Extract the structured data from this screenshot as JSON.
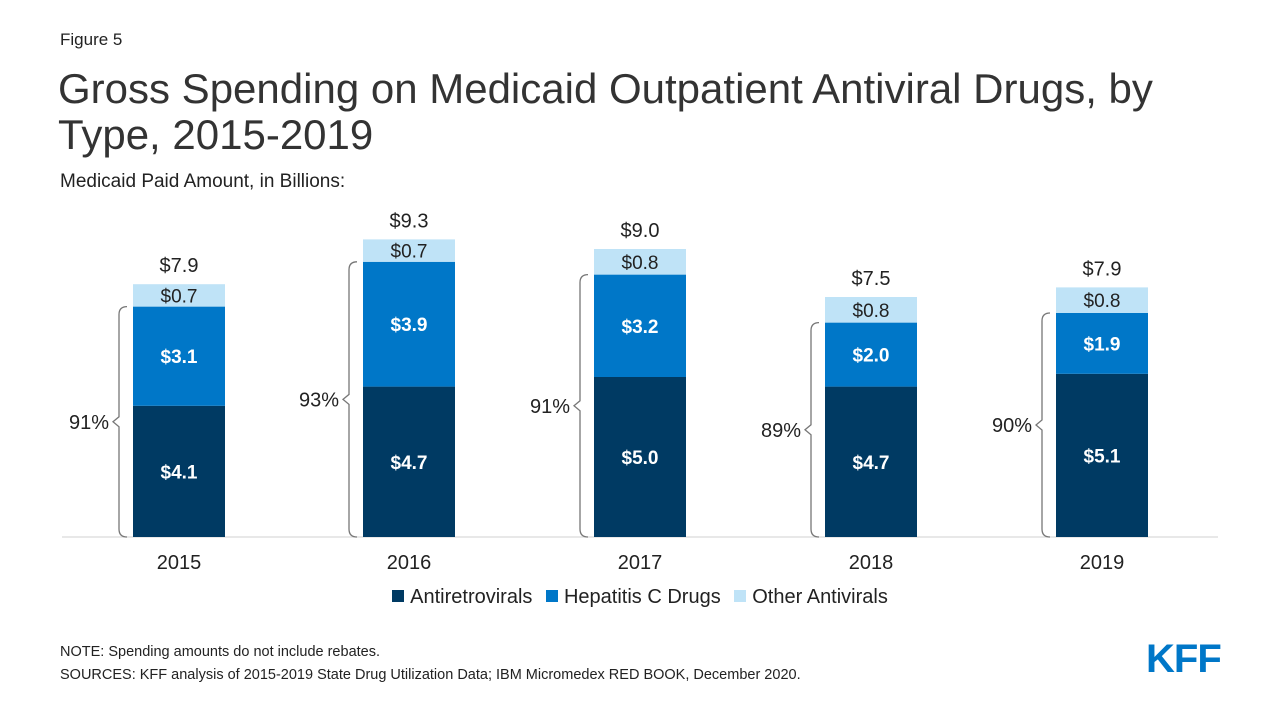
{
  "figure_label": "Figure 5",
  "logo_text": "KFF",
  "note": "NOTE: Spending amounts do not include rebates.",
  "sources": "SOURCES: KFF analysis of 2015-2019 State Drug Utilization Data; IBM Micromedex RED BOOK, December 2020.",
  "colors": {
    "antiretrovirals": "#003a63",
    "hepatitis_c": "#0077c8",
    "other": "#bfe3f7",
    "bracket": "#777777",
    "logo": "#0077c8"
  },
  "chart_data": {
    "type": "bar",
    "stacked": true,
    "title": "Gross Spending on Medicaid Outpatient Antiviral Drugs, by Type, 2015-2019",
    "subtitle": "Medicaid Paid Amount, in Billions:",
    "categories": [
      "2015",
      "2016",
      "2017",
      "2018",
      "2019"
    ],
    "series": [
      {
        "name": "Antiretrovirals",
        "values": [
          4.1,
          4.7,
          5.0,
          4.7,
          5.1
        ],
        "labels": [
          "$4.1",
          "$4.7",
          "$5.0",
          "$4.7",
          "$5.1"
        ]
      },
      {
        "name": "Hepatitis C Drugs",
        "values": [
          3.1,
          3.9,
          3.2,
          2.0,
          1.9
        ],
        "labels": [
          "$3.1",
          "$3.9",
          "$3.2",
          "$2.0",
          "$1.9"
        ]
      },
      {
        "name": "Other Antivirals",
        "values": [
          0.7,
          0.7,
          0.8,
          0.8,
          0.8
        ],
        "labels": [
          "$0.7",
          "$0.7",
          "$0.8",
          "$0.8",
          "$0.8"
        ]
      }
    ],
    "totals": [
      7.9,
      9.3,
      9.0,
      7.5,
      7.9
    ],
    "total_labels": [
      "$7.9",
      "$9.3",
      "$9.0",
      "$7.5",
      "$7.9"
    ],
    "bracket_labels": [
      "91%",
      "93%",
      "91%",
      "89%",
      "90%"
    ],
    "ylim": [
      0,
      10
    ],
    "legend_position": "bottom",
    "grid": false
  }
}
